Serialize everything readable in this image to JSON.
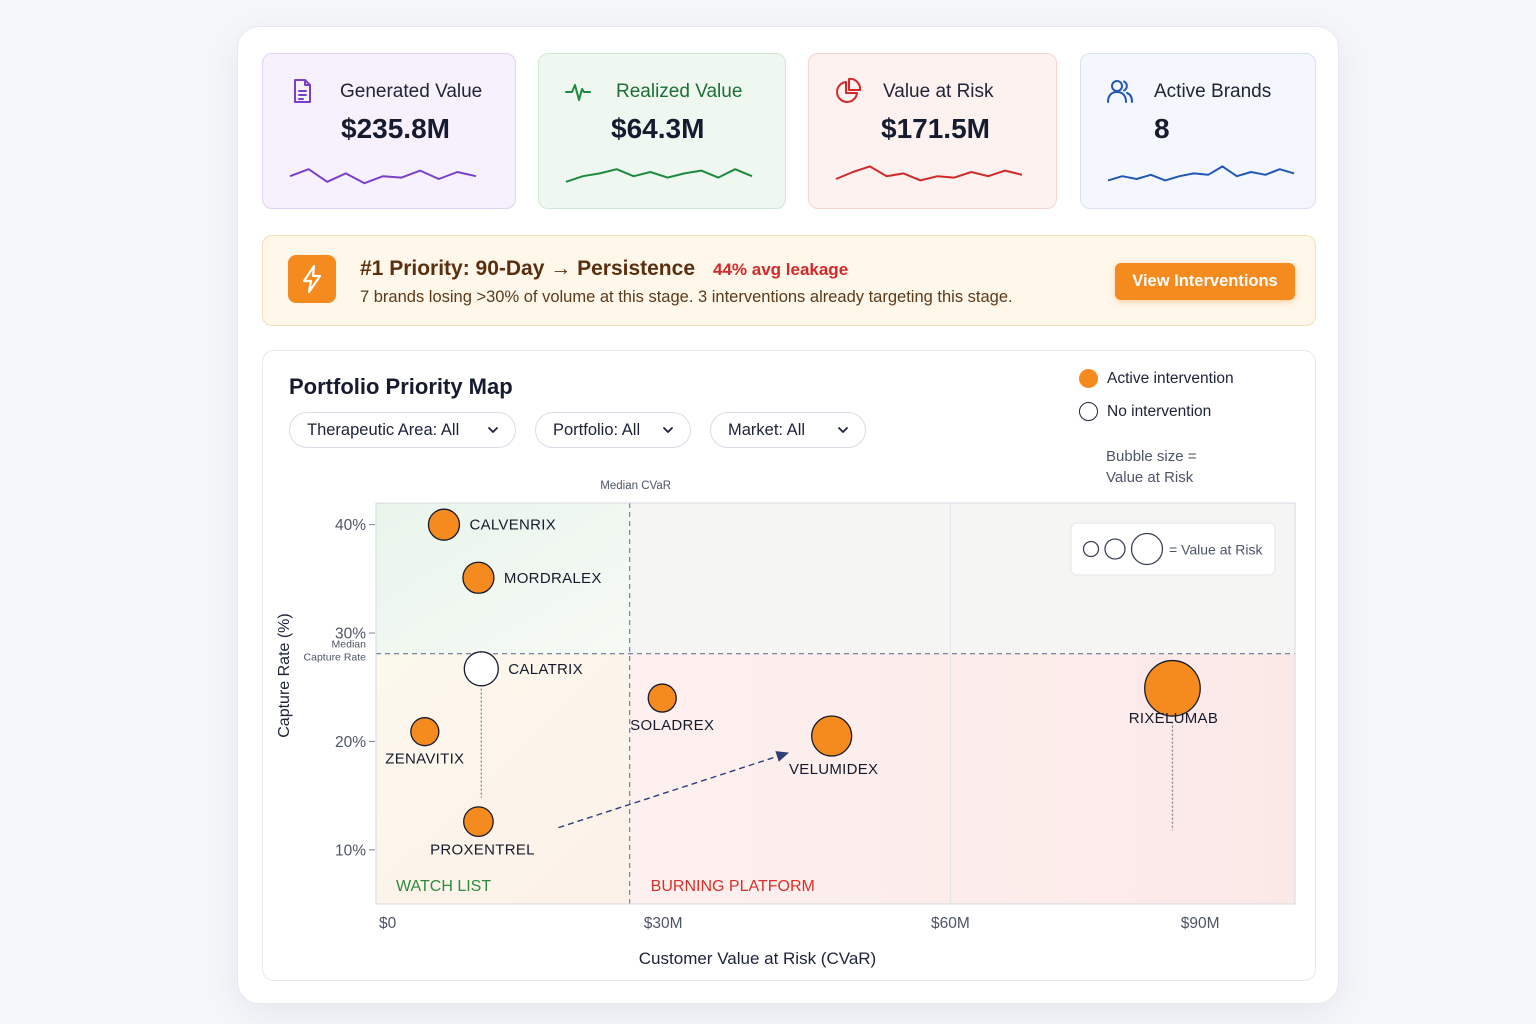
{
  "kpis": [
    {
      "label": "Generated Value",
      "value": "$235.8M",
      "icon": "document-icon",
      "color": "#7a3fc8",
      "bg": "#f7f0fd",
      "border": "#e2d2f5",
      "trend": [
        0.35,
        0.6,
        0.15,
        0.45,
        0.1,
        0.35,
        0.3,
        0.55,
        0.25,
        0.5,
        0.35
      ]
    },
    {
      "label": "Realized Value",
      "value": "$64.3M",
      "icon": "pulse-icon",
      "color": "#1d8a3e",
      "bg": "#eef8f0",
      "border": "#cfe8d5",
      "trend": [
        0.15,
        0.35,
        0.45,
        0.6,
        0.35,
        0.5,
        0.3,
        0.45,
        0.55,
        0.3,
        0.6,
        0.35
      ]
    },
    {
      "label": "Value at Risk",
      "value": "$171.5M",
      "icon": "pie-chart-icon",
      "color": "#d02a2a",
      "bg": "#fdf2ef",
      "border": "#f3d6cf",
      "trend": [
        0.25,
        0.5,
        0.7,
        0.35,
        0.45,
        0.2,
        0.35,
        0.3,
        0.5,
        0.35,
        0.55,
        0.4
      ]
    },
    {
      "label": "Active Brands",
      "value": "8",
      "icon": "users-icon",
      "color": "#2357b5",
      "bg": "#f4f7fd",
      "border": "#d9e1f2",
      "trend": [
        0.2,
        0.35,
        0.25,
        0.4,
        0.2,
        0.35,
        0.45,
        0.4,
        0.7,
        0.35,
        0.5,
        0.4,
        0.6,
        0.45
      ]
    }
  ],
  "banner": {
    "title": "#1 Priority: 90-Day → Persistence",
    "leakage": "44% avg leakage",
    "description": "7 brands losing >30% of volume at this stage. 3 interventions already targeting this stage.",
    "button_label": "View Interventions",
    "icon": "lightning-icon"
  },
  "chart_section": {
    "title": "Portfolio Priority Map",
    "filters": [
      {
        "label": "Therapeutic Area: All"
      },
      {
        "label": "Portfolio: All"
      },
      {
        "label": "Market: All"
      }
    ],
    "legend": {
      "active": "Active intervention",
      "none": "No intervention",
      "bubble_note": "Bubble size = Value at Risk",
      "inset_note": "= Value at Risk"
    }
  },
  "chart_data": {
    "type": "scatter",
    "xlabel": "Customer Value at Risk (CVaR)",
    "ylabel": "Capture Rate (%)",
    "x_unit": "$M",
    "xlim": [
      0,
      96
    ],
    "ylim": [
      5,
      42
    ],
    "x_ticks": [
      {
        "v": 0,
        "label": "$0"
      },
      {
        "v": 30,
        "label": "$30M"
      },
      {
        "v": 60,
        "label": "$60M"
      },
      {
        "v": 90,
        "label": "$90M"
      }
    ],
    "y_ticks": [
      {
        "v": 10,
        "label": "10%"
      },
      {
        "v": 20,
        "label": "20%"
      },
      {
        "v": 30,
        "label": "30%"
      },
      {
        "v": 40,
        "label": "40%"
      }
    ],
    "median_x": 26.5,
    "median_y": 28.1,
    "median_x_label": "Median CVaR",
    "median_y_label": "Median Capture Rate",
    "quadrants": {
      "bottom_left": "WATCH LIST",
      "bottom_right": "BURNING PLATFORM"
    },
    "colors": {
      "active": "#f58a1f",
      "none": "#ffffff",
      "watch": "#2e8b3d",
      "burning": "#d8312b"
    },
    "points": [
      {
        "name": "CALVENRIX",
        "x": 7.1,
        "y": 40.0,
        "size": 1,
        "active": true
      },
      {
        "name": "MORDRALEX",
        "x": 10.7,
        "y": 35.1,
        "size": 1,
        "active": true
      },
      {
        "name": "CALATRIX",
        "x": 11.0,
        "y": 26.7,
        "size": 1.1,
        "active": false
      },
      {
        "name": "ZENAVITIX",
        "x": 5.1,
        "y": 20.9,
        "size": 0.9,
        "active": true
      },
      {
        "name": "PROXENTREL",
        "x": 10.7,
        "y": 12.6,
        "size": 0.95,
        "active": true
      },
      {
        "name": "SOLADREX",
        "x": 29.9,
        "y": 24.0,
        "size": 0.9,
        "active": true
      },
      {
        "name": "VELUMIDEX",
        "x": 47.6,
        "y": 20.5,
        "size": 1.3,
        "active": true
      },
      {
        "name": "RIXELUMAB",
        "x": 83.2,
        "y": 24.9,
        "size": 1.85,
        "active": true
      }
    ]
  }
}
